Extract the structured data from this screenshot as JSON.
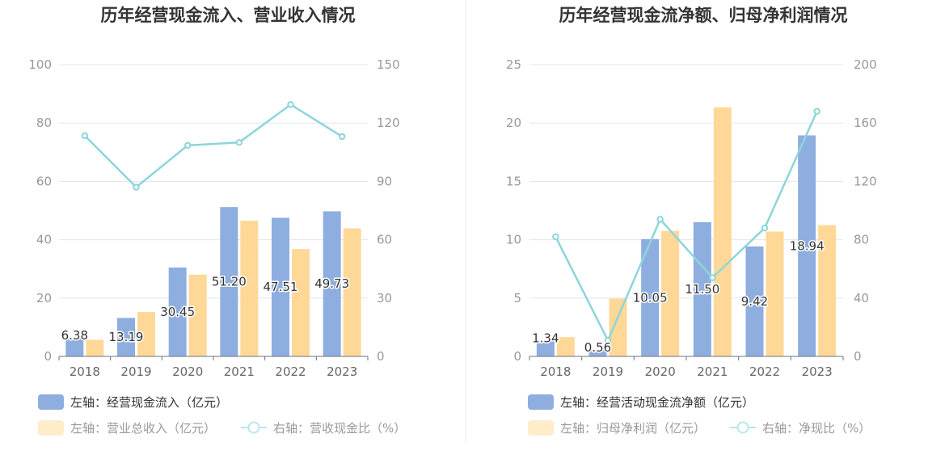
{
  "chart_data": [
    {
      "type": "bar",
      "title": "历年经营现金流入、营业收入情况",
      "categories": [
        "2018",
        "2019",
        "2020",
        "2021",
        "2022",
        "2023"
      ],
      "left_axis": {
        "min": 0,
        "max": 100,
        "ticks": [
          "0",
          "20",
          "40",
          "60",
          "80",
          "100"
        ]
      },
      "right_axis": {
        "min": 0,
        "max": 150,
        "ticks": [
          "0",
          "30",
          "60",
          "90",
          "120",
          "150"
        ]
      },
      "series": [
        {
          "name": "左轴：经营现金流入（亿元）",
          "type": "bar",
          "axis": "left",
          "color": "#8eaee0",
          "values": [
            6.38,
            13.19,
            30.45,
            51.2,
            47.51,
            49.73
          ],
          "labels": [
            "6.38",
            "13.19",
            "30.45",
            "51.20",
            "47.51",
            "49.73"
          ]
        },
        {
          "name": "左轴：营业总收入（亿元）",
          "type": "bar",
          "axis": "left",
          "color": "#ffd898",
          "values": [
            5.7,
            15.2,
            28.0,
            46.5,
            36.8,
            43.9
          ]
        },
        {
          "name": "右轴：营收现金比（%）",
          "type": "line",
          "axis": "right",
          "color": "#8dd5db",
          "values": [
            113.5,
            87.0,
            108.5,
            110.0,
            129.5,
            113.0
          ]
        }
      ],
      "legend": "bottom-left",
      "grid": true
    },
    {
      "type": "bar",
      "title": "历年经营现金流净额、归母净利润情况",
      "categories": [
        "2018",
        "2019",
        "2020",
        "2021",
        "2022",
        "2023"
      ],
      "left_axis": {
        "min": 0,
        "max": 25,
        "ticks": [
          "0",
          "5",
          "10",
          "15",
          "20",
          "25"
        ]
      },
      "right_axis": {
        "min": 0,
        "max": 200,
        "ticks": [
          "0",
          "40",
          "80",
          "120",
          "160",
          "200"
        ]
      },
      "series": [
        {
          "name": "左轴：经营活动现金流净额（亿元）",
          "type": "bar",
          "axis": "left",
          "color": "#8eaee0",
          "values": [
            1.34,
            0.56,
            10.05,
            11.5,
            9.42,
            18.94
          ],
          "labels": [
            "1.34",
            "0.56",
            "10.05",
            "11.50",
            "9.42",
            "18.94"
          ]
        },
        {
          "name": "左轴：归母净利润（亿元）",
          "type": "bar",
          "axis": "left",
          "color": "#ffd898",
          "values": [
            1.65,
            4.95,
            10.75,
            21.35,
            10.7,
            11.25
          ]
        },
        {
          "name": "右轴：净现比（%）",
          "type": "line",
          "axis": "right",
          "color": "#8dd5db",
          "values": [
            82,
            11,
            94,
            54,
            88,
            168
          ]
        }
      ],
      "legend": "bottom-left",
      "grid": true
    }
  ]
}
